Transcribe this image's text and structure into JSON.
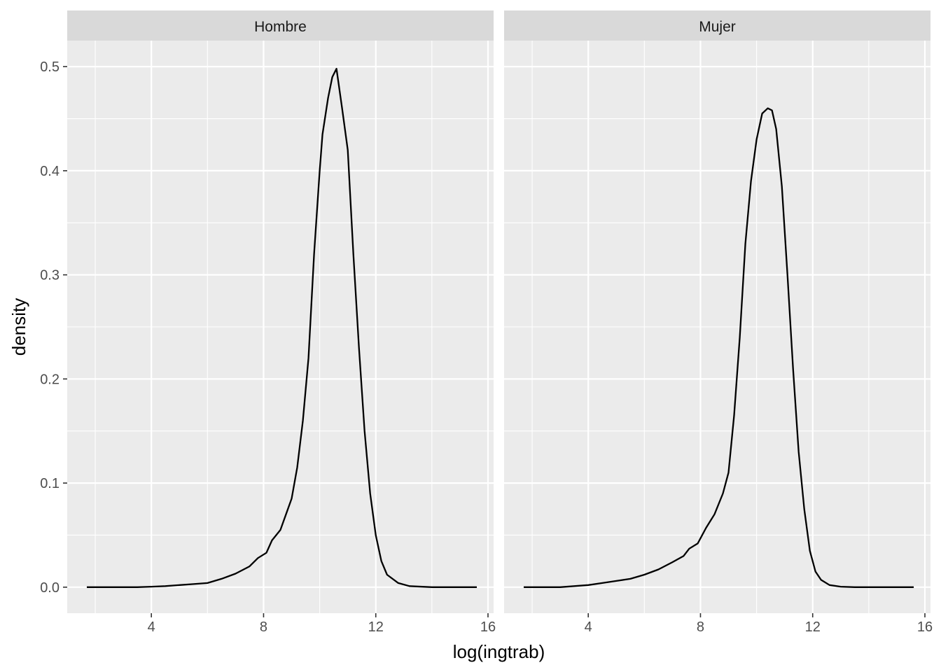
{
  "chart_data": {
    "type": "line",
    "xlabel": "log(ingtrab)",
    "ylabel": "density",
    "xlim": [
      1.0,
      16.2
    ],
    "ylim": [
      -0.025,
      0.525
    ],
    "x_ticks": [
      4,
      8,
      12,
      16
    ],
    "y_ticks": [
      0.0,
      0.1,
      0.2,
      0.3,
      0.4,
      0.5
    ],
    "y_tick_labels": [
      "0.0",
      "0.1",
      "0.2",
      "0.3",
      "0.4",
      "0.5"
    ],
    "grid": true,
    "facets": [
      {
        "label": "Hombre",
        "x": [
          1.7,
          2.5,
          3.0,
          3.5,
          4.0,
          4.5,
          5.0,
          5.5,
          6.0,
          6.5,
          7.0,
          7.5,
          7.8,
          8.1,
          8.3,
          8.6,
          8.8,
          9.0,
          9.2,
          9.4,
          9.6,
          9.8,
          10.0,
          10.1,
          10.3,
          10.45,
          10.6,
          10.8,
          11.0,
          11.2,
          11.4,
          11.6,
          11.8,
          12.0,
          12.2,
          12.4,
          12.8,
          13.2,
          14.0,
          15.6
        ],
        "y": [
          0.0,
          0.0,
          0.0,
          0.0,
          0.0005,
          0.001,
          0.002,
          0.003,
          0.004,
          0.008,
          0.013,
          0.02,
          0.028,
          0.033,
          0.045,
          0.055,
          0.07,
          0.085,
          0.115,
          0.16,
          0.22,
          0.32,
          0.4,
          0.435,
          0.47,
          0.49,
          0.498,
          0.46,
          0.42,
          0.32,
          0.23,
          0.15,
          0.09,
          0.05,
          0.025,
          0.012,
          0.004,
          0.001,
          0.0,
          0.0
        ]
      },
      {
        "label": "Mujer",
        "x": [
          1.7,
          2.5,
          3.0,
          3.5,
          4.0,
          4.5,
          5.0,
          5.5,
          6.0,
          6.5,
          7.0,
          7.4,
          7.6,
          7.9,
          8.2,
          8.5,
          8.8,
          9.0,
          9.2,
          9.4,
          9.6,
          9.8,
          10.0,
          10.2,
          10.4,
          10.55,
          10.7,
          10.9,
          11.1,
          11.3,
          11.5,
          11.7,
          11.9,
          12.1,
          12.3,
          12.6,
          13.0,
          13.5,
          14.5,
          15.6
        ],
        "y": [
          0.0,
          0.0,
          0.0,
          0.001,
          0.002,
          0.004,
          0.006,
          0.008,
          0.012,
          0.017,
          0.024,
          0.03,
          0.037,
          0.042,
          0.057,
          0.07,
          0.09,
          0.11,
          0.165,
          0.24,
          0.33,
          0.39,
          0.43,
          0.455,
          0.46,
          0.458,
          0.44,
          0.385,
          0.3,
          0.21,
          0.13,
          0.075,
          0.035,
          0.015,
          0.007,
          0.002,
          0.0005,
          0.0,
          0.0,
          0.0
        ]
      }
    ]
  }
}
